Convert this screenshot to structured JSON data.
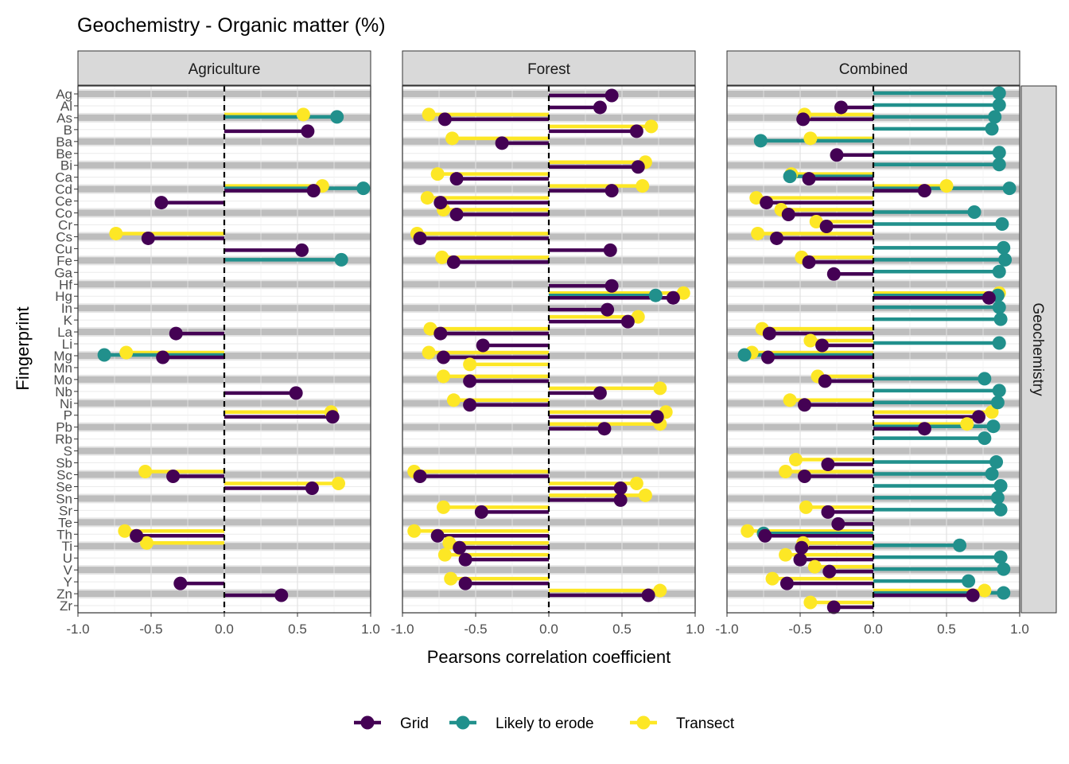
{
  "chart_data": {
    "type": "lollipop",
    "title": "Geochemistry - Organic matter (%)",
    "xlabel": "Pearsons correlation coefficient",
    "ylabel": "Fingerprint",
    "xlim": [
      -1,
      1
    ],
    "xticks": [
      "-1.0",
      "-0.5",
      "0.0",
      "0.5",
      "1.0"
    ],
    "row_strip": "Geochemistry",
    "legend_position": "bottom",
    "colors": {
      "Grid": "#440154",
      "Likely to erode": "#21908C",
      "Transect": "#FDE725"
    },
    "legend": [
      "Grid",
      "Likely to erode",
      "Transect"
    ],
    "categories": [
      "Ag",
      "Al",
      "As",
      "B",
      "Ba",
      "Be",
      "Bi",
      "Ca",
      "Cd",
      "Ce",
      "Co",
      "Cr",
      "Cs",
      "Cu",
      "Fe",
      "Ga",
      "Hf",
      "Hg",
      "In",
      "K",
      "La",
      "Li",
      "Mg",
      "Mn",
      "Mo",
      "Nb",
      "Ni",
      "P",
      "Pb",
      "Rb",
      "S",
      "Sb",
      "Sc",
      "Se",
      "Sn",
      "Sr",
      "Te",
      "Th",
      "Ti",
      "U",
      "V",
      "Y",
      "Zn",
      "Zr"
    ],
    "panels": [
      {
        "name": "Agriculture",
        "values": {
          "Transect": {
            "As": 0.54,
            "Cd": 0.67,
            "Cs": -0.74,
            "Mg": -0.67,
            "P": 0.73,
            "Sc": -0.54,
            "Se": 0.78,
            "Th": -0.68,
            "Ti": -0.53
          },
          "Likely to erode": {
            "As": 0.77,
            "Cd": 0.95,
            "Fe": 0.8,
            "Mg": -0.82
          },
          "Grid": {
            "B": 0.57,
            "Cd": 0.61,
            "Ce": -0.43,
            "Cs": -0.52,
            "Cu": 0.53,
            "La": -0.33,
            "Mg": -0.42,
            "Nb": 0.49,
            "P": 0.74,
            "Sc": -0.35,
            "Se": 0.6,
            "Th": -0.6,
            "Y": -0.3,
            "Zn": 0.39
          }
        }
      },
      {
        "name": "Forest",
        "values": {
          "Transect": {
            "As": -0.82,
            "B": 0.7,
            "Ba": -0.66,
            "Bi": 0.66,
            "Ca": -0.76,
            "Cd": 0.64,
            "Ce": -0.83,
            "Co": -0.72,
            "Cs": -0.9,
            "Fe": -0.73,
            "Hg": 0.92,
            "K": 0.61,
            "La": -0.81,
            "Mg": -0.82,
            "Mn": -0.54,
            "Mo": -0.72,
            "Nb": 0.76,
            "Ni": -0.65,
            "P": 0.8,
            "Pb": 0.76,
            "Sc": -0.92,
            "Se": 0.6,
            "Sn": 0.66,
            "Sr": -0.72,
            "Th": -0.92,
            "Ti": -0.68,
            "U": -0.71,
            "Y": -0.67,
            "Zn": 0.76
          },
          "Likely to erode": {
            "Hg": 0.73
          },
          "Grid": {
            "Ag": 0.43,
            "Al": 0.35,
            "As": -0.71,
            "B": 0.6,
            "Ba": -0.32,
            "Bi": 0.61,
            "Ca": -0.63,
            "Cd": 0.43,
            "Ce": -0.74,
            "Co": -0.63,
            "Cs": -0.88,
            "Cu": 0.42,
            "Fe": -0.65,
            "Hf": 0.43,
            "Hg": 0.85,
            "In": 0.4,
            "K": 0.54,
            "La": -0.74,
            "Li": -0.45,
            "Mg": -0.72,
            "Mo": -0.54,
            "Nb": 0.35,
            "Ni": -0.54,
            "P": 0.74,
            "Pb": 0.38,
            "Sc": -0.88,
            "Se": 0.49,
            "Sn": 0.49,
            "Sr": -0.46,
            "Th": -0.76,
            "Ti": -0.61,
            "U": -0.57,
            "Y": -0.57,
            "Zn": 0.68
          }
        }
      },
      {
        "name": "Combined",
        "values": {
          "Transect": {
            "As": -0.47,
            "Ba": -0.43,
            "Ca": -0.56,
            "Cd": 0.5,
            "Ce": -0.8,
            "Co": -0.63,
            "Cr": -0.39,
            "Cs": -0.79,
            "Fe": -0.49,
            "Hg": 0.86,
            "La": -0.76,
            "Li": -0.43,
            "Mg": -0.83,
            "Mo": -0.38,
            "Ni": -0.57,
            "P": 0.81,
            "Pb": 0.64,
            "Sb": -0.53,
            "Sc": -0.6,
            "Sr": -0.46,
            "Th": -0.86,
            "Ti": -0.48,
            "U": -0.6,
            "V": -0.4,
            "Y": -0.69,
            "Zn": 0.76,
            "Zr": -0.43
          },
          "Likely to erode": {
            "Ag": 0.86,
            "Al": 0.86,
            "As": 0.83,
            "B": 0.81,
            "Ba": -0.77,
            "Be": 0.86,
            "Bi": 0.86,
            "Ca": -0.57,
            "Cd": 0.93,
            "Co": 0.69,
            "Cr": 0.88,
            "Cu": 0.89,
            "Fe": 0.9,
            "Ga": 0.86,
            "Hg": 0.85,
            "In": 0.86,
            "K": 0.87,
            "Li": 0.86,
            "Mg": -0.88,
            "Mo": 0.76,
            "Nb": 0.86,
            "Ni": 0.85,
            "Pb": 0.82,
            "Rb": 0.76,
            "Sb": 0.84,
            "Sc": 0.81,
            "Se": 0.87,
            "Sn": 0.85,
            "Sr": 0.87,
            "Th": -0.75,
            "Ti": 0.59,
            "U": 0.87,
            "V": 0.89,
            "Y": 0.65,
            "Zn": 0.89
          },
          "Grid": {
            "Al": -0.22,
            "As": -0.48,
            "Be": -0.25,
            "Ca": -0.44,
            "Cd": 0.35,
            "Ce": -0.73,
            "Co": -0.58,
            "Cr": -0.32,
            "Cs": -0.66,
            "Fe": -0.44,
            "Ga": -0.27,
            "Hg": 0.79,
            "La": -0.71,
            "Li": -0.35,
            "Mg": -0.72,
            "Mo": -0.33,
            "Ni": -0.47,
            "P": 0.72,
            "Pb": 0.35,
            "Sb": -0.31,
            "Sc": -0.47,
            "Sr": -0.31,
            "Te": -0.24,
            "Th": -0.74,
            "Ti": -0.49,
            "U": -0.5,
            "V": -0.3,
            "Y": -0.59,
            "Zn": 0.68,
            "Zr": -0.27
          }
        }
      }
    ]
  }
}
